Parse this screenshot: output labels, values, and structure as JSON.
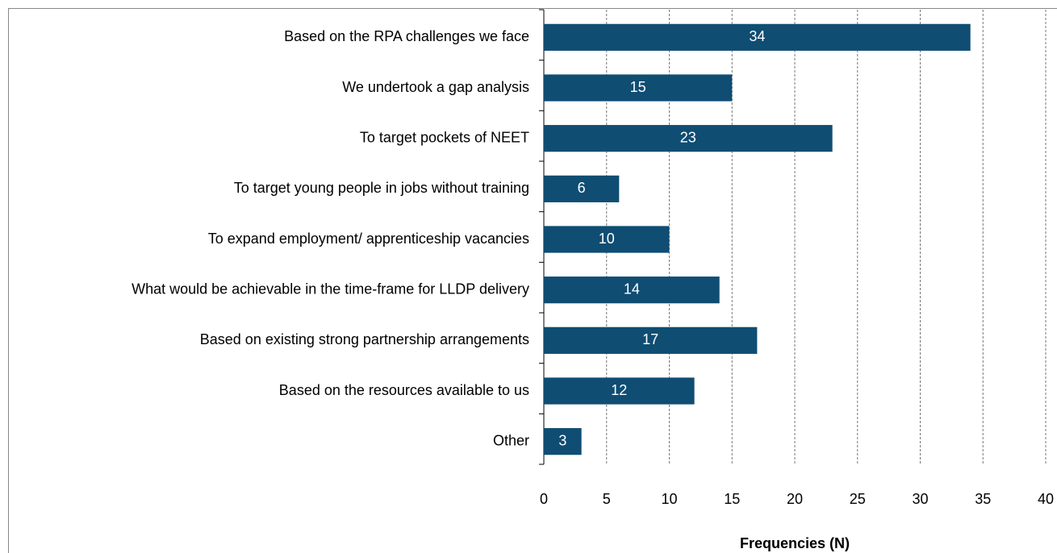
{
  "chart_data": {
    "type": "bar",
    "orientation": "horizontal",
    "categories": [
      "Based on the RPA challenges we face",
      "We undertook a gap analysis",
      "To target pockets of NEET",
      "To target young people in jobs without training",
      "To expand employment/ apprenticeship vacancies",
      "What would be achievable in the time-frame for LLDP delivery",
      "Based on existing strong partnership arrangements",
      "Based on the resources available to us",
      "Other"
    ],
    "values": [
      34,
      15,
      23,
      6,
      10,
      14,
      17,
      12,
      3
    ],
    "color": "#0f4d73",
    "xlabel": "Frequencies (N)",
    "xlim": [
      0,
      40
    ],
    "xticks": [
      0,
      5,
      10,
      15,
      20,
      25,
      30,
      35,
      40
    ],
    "grid": true
  }
}
